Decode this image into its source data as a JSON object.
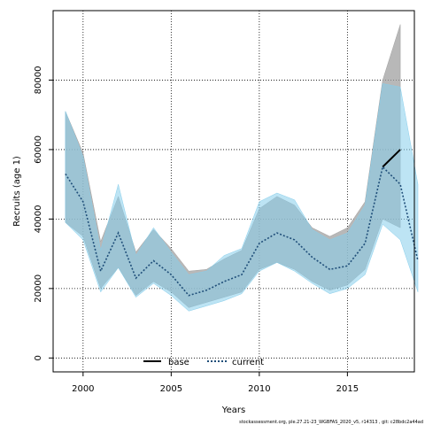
{
  "chart_data": {
    "type": "area",
    "title": "",
    "xlabel": "Years",
    "ylabel": "Recruits (age 1)",
    "xlim": [
      1998.3,
      2018.8
    ],
    "ylim": [
      -4000,
      100000
    ],
    "grid": true,
    "legend_placement": "bottom",
    "x_ticks": [
      2000,
      2005,
      2010,
      2015
    ],
    "y_ticks": [
      0,
      20000,
      40000,
      60000,
      80000
    ],
    "x": [
      1999,
      2000,
      2001,
      2002,
      2003,
      2004,
      2005,
      2006,
      2007,
      2008,
      2009,
      2010,
      2011,
      2012,
      2013,
      2014,
      2015,
      2016,
      2017,
      2018,
      2019
    ],
    "series": [
      {
        "name": "base",
        "color": "#000000",
        "line_style": "solid",
        "band_color": "#a0a0a0",
        "values": [
          null,
          null,
          null,
          null,
          null,
          null,
          null,
          null,
          null,
          null,
          null,
          null,
          null,
          null,
          null,
          null,
          null,
          null,
          55000,
          60000,
          null
        ],
        "lower": [
          39000,
          35000,
          20000,
          26000,
          18000,
          22000,
          19000,
          14500,
          16000,
          17500,
          19000,
          25500,
          27500,
          25500,
          22000,
          19500,
          21000,
          25500,
          40000,
          37500,
          null
        ],
        "upper": [
          71000,
          59000,
          33500,
          46500,
          30500,
          37000,
          31500,
          25000,
          25500,
          28500,
          31000,
          43000,
          46500,
          44000,
          37500,
          35000,
          37500,
          45000,
          80000,
          96000,
          null
        ]
      },
      {
        "name": "current",
        "color": "#1f4e79",
        "line_style": "dotted",
        "band_color": "#87ceeb",
        "values": [
          53000,
          45000,
          25000,
          36000,
          23000,
          28000,
          24000,
          18000,
          19500,
          22000,
          24000,
          33000,
          36000,
          34000,
          29000,
          25500,
          26500,
          33000,
          55000,
          50000,
          28000
        ],
        "lower": [
          39000,
          34000,
          19000,
          26000,
          17500,
          21500,
          18000,
          13500,
          15000,
          16500,
          18500,
          25000,
          27500,
          25000,
          21500,
          18500,
          20000,
          24000,
          38500,
          34000,
          19000
        ],
        "upper": [
          71000,
          58000,
          31000,
          50000,
          29500,
          37500,
          30500,
          24000,
          25000,
          29500,
          31500,
          45000,
          47500,
          45500,
          37000,
          34000,
          36000,
          44000,
          79000,
          78000,
          50000
        ]
      }
    ],
    "caption": "stockassessment.org, ple.27.21-23_WGBFAS_2020_v5, r14313 , git: c28bdc2a44ad"
  }
}
